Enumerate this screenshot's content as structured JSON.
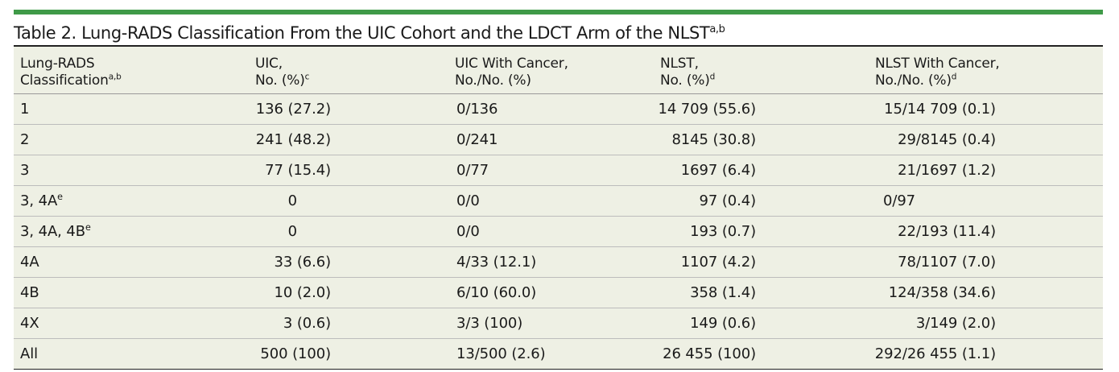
{
  "table": {
    "title": "Table 2. Lung-RADS Classification From the UIC Cohort and the LDCT Arm of the NLST",
    "title_sup": "a,b",
    "headers": [
      {
        "line1": "Lung-RADS",
        "line2": "Classification",
        "sup": "a,b"
      },
      {
        "line1": "UIC,",
        "line2": "No. (%)",
        "sup": "c"
      },
      {
        "line1": "UIC With Cancer,",
        "line2": "No./No. (%)",
        "sup": ""
      },
      {
        "line1": "NLST,",
        "line2": "No. (%)",
        "sup": "d"
      },
      {
        "line1": "NLST With Cancer,",
        "line2": "No./No. (%)",
        "sup": "d"
      }
    ],
    "rows": [
      {
        "cls": "1",
        "sup": "",
        "uic": "136 (27.2)",
        "uic_cancer": "0/136",
        "nlst": "14 709 (55.6)",
        "nlst_cancer": "15/14 709 (0.1)"
      },
      {
        "cls": "2",
        "sup": "",
        "uic": "241 (48.2)",
        "uic_cancer": "0/241",
        "nlst": "8145 (30.8)",
        "nlst_cancer": "29/8145 (0.4)"
      },
      {
        "cls": "3",
        "sup": "",
        "uic": "77 (15.4)",
        "uic_cancer": "0/77",
        "nlst": "1697 (6.4)",
        "nlst_cancer": "21/1697 (1.2)"
      },
      {
        "cls": "3, 4A",
        "sup": "e",
        "uic": "0",
        "uic_cancer": "0/0",
        "nlst": "97 (0.4)",
        "nlst_cancer": "0/97"
      },
      {
        "cls": "3, 4A, 4B",
        "sup": "e",
        "uic": "0",
        "uic_cancer": "0/0",
        "nlst": "193 (0.7)",
        "nlst_cancer": "22/193 (11.4)"
      },
      {
        "cls": "4A",
        "sup": "",
        "uic": "33 (6.6)",
        "uic_cancer": "4/33 (12.1)",
        "nlst": "1107 (4.2)",
        "nlst_cancer": "78/1107 (7.0)"
      },
      {
        "cls": "4B",
        "sup": "",
        "uic": "10 (2.0)",
        "uic_cancer": "6/10 (60.0)",
        "nlst": "358 (1.4)",
        "nlst_cancer": "124/358 (34.6)"
      },
      {
        "cls": "4X",
        "sup": "",
        "uic": "3 (0.6)",
        "uic_cancer": "3/3 (100)",
        "nlst": "149 (0.6)",
        "nlst_cancer": "3/149 (2.0)"
      },
      {
        "cls": "All",
        "sup": "",
        "uic": "500 (100)",
        "uic_cancer": "13/500 (2.6)",
        "nlst": "26 455 (100)",
        "nlst_cancer": "292/26 455 (1.1)"
      }
    ],
    "colors": {
      "accent_bar": "#3f9a48",
      "table_bg": "#eef0e4"
    }
  }
}
